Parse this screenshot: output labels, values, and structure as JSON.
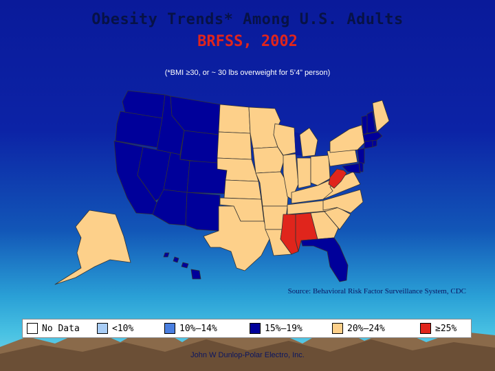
{
  "title": "Obesity Trends* Among U.S. Adults",
  "subtitle": "BRFSS, 2002",
  "footnote": "(*BMI ≥30, or ~ 30 lbs overweight for 5’4” person)",
  "source": "Source: Behavioral Risk Factor Surveillance System, CDC",
  "credit": "John W Dunlop-Polar Electro, Inc.",
  "legend": [
    {
      "label": "No Data",
      "color": "#ffffff"
    },
    {
      "label": "<10%",
      "color": "#a9cdf5"
    },
    {
      "label": "10%–14%",
      "color": "#4a7fe0"
    },
    {
      "label": "15%–19%",
      "color": "#00009a"
    },
    {
      "label": "20%–24%",
      "color": "#fdd08a"
    },
    {
      "label": "≥25%",
      "color": "#e0251c"
    }
  ],
  "categories": {
    "15-19": [
      "WA",
      "OR",
      "CA",
      "NV",
      "ID",
      "MT",
      "WY",
      "UT",
      "CO",
      "AZ",
      "NM",
      "FL",
      "VT",
      "NH",
      "MA",
      "CT",
      "RI",
      "NJ",
      "MD",
      "DE",
      "HI"
    ],
    "20-24": [
      "ND",
      "SD",
      "NE",
      "KS",
      "OK",
      "TX",
      "MN",
      "IA",
      "MO",
      "AR",
      "LA",
      "WI",
      "IL",
      "MI",
      "IN",
      "OH",
      "KY",
      "TN",
      "GA",
      "SC",
      "NC",
      "VA",
      "PA",
      "NY",
      "ME",
      "AK"
    ],
    "25+": [
      "MS",
      "AL",
      "WV"
    ]
  },
  "colors": {
    "title": "#071246",
    "subtitle": "#e0251c",
    "background_top": "#0a1a9a",
    "background_bottom": "#7ed3e6"
  }
}
